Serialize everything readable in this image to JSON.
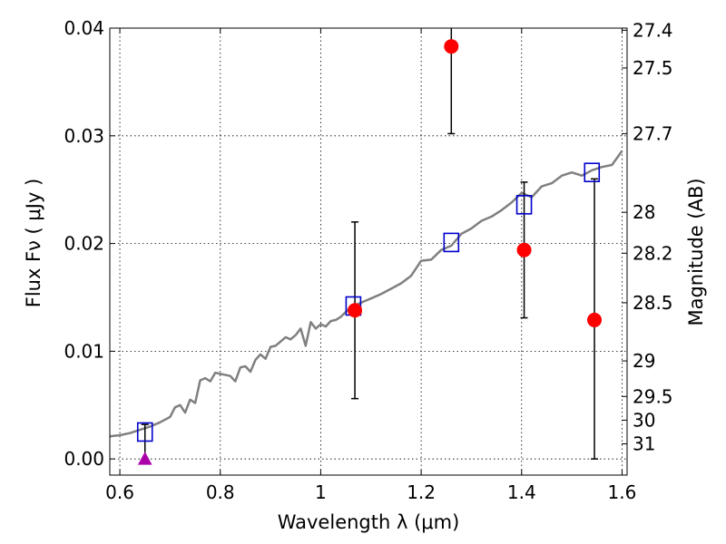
{
  "chart_data": {
    "type": "scatter",
    "xlabel": "Wavelength  λ (μm)",
    "ylabel": "Flux  Fν  ( μJy )",
    "ylabel_right": "Magnitude (AB)",
    "xlim": [
      0.58,
      1.61
    ],
    "ylim": [
      -0.0015,
      0.04
    ],
    "grid": true,
    "x_ticks": [
      {
        "value": 0.6,
        "label": "0.6"
      },
      {
        "value": 0.8,
        "label": "0.8"
      },
      {
        "value": 1.0,
        "label": "1"
      },
      {
        "value": 1.2,
        "label": "1.2"
      },
      {
        "value": 1.4,
        "label": "1.4"
      },
      {
        "value": 1.6,
        "label": "1.6"
      }
    ],
    "y_ticks": [
      {
        "value": 0.0,
        "label": "0.00"
      },
      {
        "value": 0.01,
        "label": "0.01"
      },
      {
        "value": 0.02,
        "label": "0.02"
      },
      {
        "value": 0.03,
        "label": "0.03"
      },
      {
        "value": 0.04,
        "label": "0.04"
      }
    ],
    "right_ticks": [
      {
        "flux": 0.0398,
        "label": "27.4"
      },
      {
        "flux": 0.0363,
        "label": "27.5"
      },
      {
        "flux": 0.0302,
        "label": "27.7"
      },
      {
        "flux": 0.0229,
        "label": "28"
      },
      {
        "flux": 0.0191,
        "label": "28.2"
      },
      {
        "flux": 0.0145,
        "label": "28.5"
      },
      {
        "flux": 0.0091,
        "label": "29"
      },
      {
        "flux": 0.0058,
        "label": "29.5"
      },
      {
        "flux": 0.0036,
        "label": "30"
      },
      {
        "flux": 0.0014,
        "label": "31"
      }
    ],
    "series": [
      {
        "marker": "line",
        "color": "#808080",
        "x": [
          0.58,
          0.6,
          0.62,
          0.64,
          0.66,
          0.68,
          0.7,
          0.71,
          0.72,
          0.73,
          0.74,
          0.75,
          0.76,
          0.77,
          0.78,
          0.79,
          0.8,
          0.82,
          0.83,
          0.84,
          0.85,
          0.86,
          0.87,
          0.88,
          0.89,
          0.9,
          0.91,
          0.92,
          0.93,
          0.94,
          0.95,
          0.96,
          0.97,
          0.98,
          0.99,
          1.0,
          1.01,
          1.02,
          1.03,
          1.04,
          1.06,
          1.08,
          1.1,
          1.12,
          1.14,
          1.16,
          1.18,
          1.2,
          1.22,
          1.24,
          1.26,
          1.28,
          1.3,
          1.32,
          1.34,
          1.36,
          1.38,
          1.4,
          1.42,
          1.44,
          1.46,
          1.48,
          1.5,
          1.52,
          1.54,
          1.56,
          1.58,
          1.6
        ],
        "y": [
          0.0021,
          0.0022,
          0.0024,
          0.0027,
          0.003,
          0.0034,
          0.0039,
          0.0048,
          0.005,
          0.0043,
          0.0055,
          0.0052,
          0.0073,
          0.0075,
          0.0072,
          0.008,
          0.0079,
          0.0077,
          0.0072,
          0.0085,
          0.0086,
          0.0081,
          0.0092,
          0.0097,
          0.0093,
          0.0104,
          0.0105,
          0.0109,
          0.0113,
          0.0111,
          0.0115,
          0.0121,
          0.0105,
          0.0127,
          0.0121,
          0.0125,
          0.0123,
          0.0128,
          0.0129,
          0.0132,
          0.0141,
          0.0145,
          0.0149,
          0.0153,
          0.0158,
          0.0163,
          0.017,
          0.0184,
          0.0185,
          0.0194,
          0.0198,
          0.0209,
          0.0214,
          0.0221,
          0.0225,
          0.0231,
          0.0238,
          0.0247,
          0.0243,
          0.0253,
          0.0256,
          0.0263,
          0.0266,
          0.0263,
          0.0268,
          0.0271,
          0.0273,
          0.0286
        ]
      },
      {
        "marker": "open-square",
        "color": "#0000cc",
        "x": [
          0.65,
          1.065,
          1.26,
          1.405,
          1.54
        ],
        "y": [
          0.0025,
          0.0142,
          0.0201,
          0.0236,
          0.0266
        ]
      },
      {
        "marker": "filled-circle",
        "color": "#ff0000",
        "x": [
          1.068,
          1.26,
          1.405,
          1.545
        ],
        "y": [
          0.0138,
          0.0383,
          0.0194,
          0.0129
        ],
        "err_low": [
          0.0082,
          0.0081,
          0.0063,
          0.0129
        ],
        "err_high": [
          0.0082,
          0.0081,
          0.0063,
          0.0131
        ]
      },
      {
        "marker": "triangle",
        "color": "#aa00aa",
        "x": [
          0.65
        ],
        "y": [
          0.0
        ],
        "err_low": [
          0.0
        ],
        "err_high": [
          0.0032
        ]
      }
    ]
  }
}
